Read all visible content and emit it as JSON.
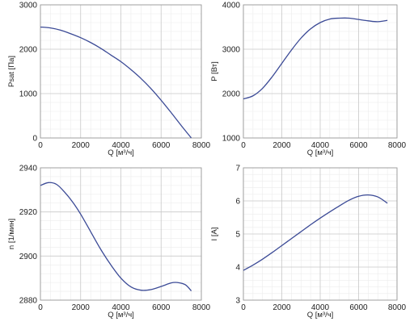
{
  "chart_data": [
    {
      "type": "line",
      "ylabel": "Psat [Па]",
      "xlabel": "Q [м³/ч]",
      "xlim": [
        0,
        8000
      ],
      "ylim": [
        0,
        3000
      ],
      "xticks": [
        "0",
        "2000",
        "4000",
        "6000",
        "8000"
      ],
      "yticks": [
        "0",
        "1000",
        "2000",
        "3000"
      ],
      "grid": true,
      "series": [
        {
          "x": [
            0,
            500,
            1000,
            1500,
            2000,
            2500,
            3000,
            3500,
            4000,
            4500,
            5000,
            5500,
            6000,
            6500,
            7000,
            7500
          ],
          "y": [
            2500,
            2480,
            2430,
            2350,
            2260,
            2150,
            2020,
            1870,
            1720,
            1540,
            1340,
            1110,
            850,
            570,
            280,
            0
          ]
        }
      ]
    },
    {
      "type": "line",
      "ylabel": "P [Вт]",
      "xlabel": "Q [м³/ч]",
      "xlim": [
        0,
        8000
      ],
      "ylim": [
        1000,
        4000
      ],
      "xticks": [
        "0",
        "2000",
        "4000",
        "6000",
        "8000"
      ],
      "yticks": [
        "1000",
        "2000",
        "3000",
        "4000"
      ],
      "grid": true,
      "series": [
        {
          "x": [
            0,
            500,
            1000,
            1500,
            2000,
            2500,
            3000,
            3500,
            4000,
            4500,
            5000,
            5500,
            6000,
            6500,
            7000,
            7500
          ],
          "y": [
            1880,
            1950,
            2120,
            2380,
            2680,
            2980,
            3250,
            3460,
            3600,
            3680,
            3700,
            3700,
            3670,
            3640,
            3620,
            3650
          ]
        }
      ]
    },
    {
      "type": "line",
      "ylabel": "n [1/мин]",
      "xlabel": "Q [м³/ч]",
      "xlim": [
        0,
        8000
      ],
      "ylim": [
        2880,
        2940
      ],
      "xticks": [
        "0",
        "2000",
        "4000",
        "6000",
        "8000"
      ],
      "yticks": [
        "2880",
        "2900",
        "2920",
        "2940"
      ],
      "grid": true,
      "series": [
        {
          "x": [
            0,
            400,
            800,
            1200,
            1600,
            2000,
            2500,
            3000,
            3500,
            4000,
            4500,
            5000,
            5500,
            6000,
            6500,
            6800,
            7200,
            7500
          ],
          "y": [
            2932,
            2933.3,
            2932.5,
            2929,
            2924.5,
            2919,
            2911,
            2903,
            2896,
            2890,
            2886,
            2884.5,
            2884.8,
            2886.2,
            2887.8,
            2888,
            2887,
            2884.2
          ]
        }
      ]
    },
    {
      "type": "line",
      "ylabel": "I [A]",
      "xlabel": "Q [м³/ч]",
      "xlim": [
        0,
        8000
      ],
      "ylim": [
        3,
        7
      ],
      "xticks": [
        "0",
        "2000",
        "4000",
        "6000",
        "8000"
      ],
      "yticks": [
        "3",
        "4",
        "5",
        "6",
        "7"
      ],
      "grid": true,
      "series": [
        {
          "x": [
            0,
            500,
            1000,
            1500,
            2000,
            2500,
            3000,
            3500,
            4000,
            4500,
            5000,
            5500,
            6000,
            6500,
            7000,
            7500
          ],
          "y": [
            3.9,
            4.06,
            4.24,
            4.44,
            4.65,
            4.86,
            5.07,
            5.28,
            5.48,
            5.67,
            5.85,
            6.02,
            6.14,
            6.18,
            6.12,
            5.93
          ]
        }
      ]
    }
  ]
}
